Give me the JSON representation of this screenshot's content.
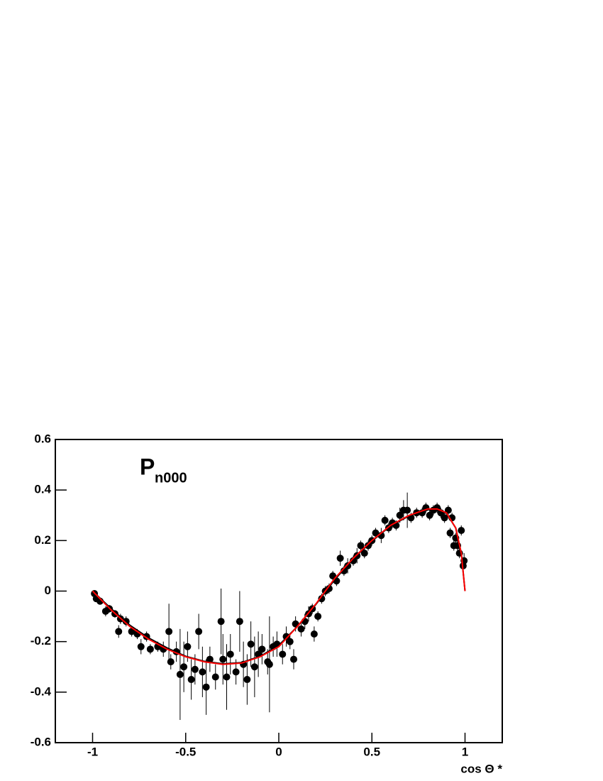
{
  "chart_data": {
    "type": "scatter",
    "annotation": {
      "text": "P",
      "subscript": "n000"
    },
    "x_label": "cos Θ *",
    "xlim": [
      -1.2,
      1.2
    ],
    "ylim": [
      -0.6,
      0.6
    ],
    "xticks": [
      -1,
      -0.5,
      0,
      0.5,
      1
    ],
    "yticks": [
      -0.6,
      -0.4,
      -0.2,
      0,
      0.2,
      0.4,
      0.6
    ],
    "series": [
      {
        "type": "scatter",
        "color": "#000000",
        "x": [
          -0.99,
          -0.98,
          -0.96,
          -0.93,
          -0.91,
          -0.88,
          -0.86,
          -0.85,
          -0.82,
          -0.79,
          -0.76,
          -0.74,
          -0.71,
          -0.69,
          -0.65,
          -0.62,
          -0.59,
          -0.58,
          -0.55,
          -0.53,
          -0.51,
          -0.49,
          -0.47,
          -0.45,
          -0.43,
          -0.41,
          -0.39,
          -0.37,
          -0.34,
          -0.31,
          -0.3,
          -0.28,
          -0.26,
          -0.23,
          -0.21,
          -0.19,
          -0.17,
          -0.15,
          -0.13,
          -0.11,
          -0.09,
          -0.06,
          -0.05,
          -0.03,
          -0.01,
          0.02,
          0.04,
          0.06,
          0.08,
          0.09,
          0.12,
          0.14,
          0.16,
          0.18,
          0.19,
          0.21,
          0.23,
          0.25,
          0.27,
          0.29,
          0.31,
          0.33,
          0.35,
          0.37,
          0.4,
          0.42,
          0.44,
          0.46,
          0.48,
          0.5,
          0.52,
          0.55,
          0.57,
          0.59,
          0.61,
          0.63,
          0.65,
          0.67,
          0.69,
          0.71,
          0.74,
          0.77,
          0.79,
          0.81,
          0.83,
          0.85,
          0.87,
          0.89,
          0.91,
          0.92,
          0.93,
          0.94,
          0.95,
          0.96,
          0.97,
          0.98,
          0.99,
          0.995
        ],
        "values": [
          -0.01,
          -0.03,
          -0.04,
          -0.08,
          -0.07,
          -0.09,
          -0.16,
          -0.11,
          -0.12,
          -0.16,
          -0.17,
          -0.22,
          -0.18,
          -0.23,
          -0.22,
          -0.23,
          -0.16,
          -0.28,
          -0.24,
          -0.33,
          -0.3,
          -0.22,
          -0.35,
          -0.31,
          -0.16,
          -0.32,
          -0.38,
          -0.27,
          -0.34,
          -0.12,
          -0.27,
          -0.34,
          -0.25,
          -0.32,
          -0.12,
          -0.29,
          -0.35,
          -0.21,
          -0.3,
          -0.25,
          -0.23,
          -0.28,
          -0.29,
          -0.22,
          -0.21,
          -0.25,
          -0.18,
          -0.2,
          -0.27,
          -0.13,
          -0.15,
          -0.12,
          -0.09,
          -0.07,
          -0.17,
          -0.1,
          -0.03,
          0.0,
          0.01,
          0.06,
          0.04,
          0.13,
          0.08,
          0.1,
          0.12,
          0.14,
          0.18,
          0.15,
          0.18,
          0.2,
          0.23,
          0.22,
          0.28,
          0.25,
          0.27,
          0.26,
          0.3,
          0.32,
          0.32,
          0.29,
          0.31,
          0.31,
          0.33,
          0.3,
          0.32,
          0.33,
          0.31,
          0.29,
          0.32,
          0.23,
          0.29,
          0.18,
          0.21,
          0.18,
          0.15,
          0.24,
          0.1,
          0.12
        ],
        "errors": [
          0.005,
          0.01,
          0.01,
          0.02,
          0.015,
          0.015,
          0.025,
          0.02,
          0.02,
          0.02,
          0.02,
          0.03,
          0.02,
          0.02,
          0.02,
          0.03,
          0.11,
          0.03,
          0.04,
          0.18,
          0.1,
          0.06,
          0.08,
          0.06,
          0.07,
          0.1,
          0.11,
          0.05,
          0.05,
          0.13,
          0.1,
          0.13,
          0.08,
          0.05,
          0.12,
          0.09,
          0.1,
          0.09,
          0.12,
          0.09,
          0.06,
          0.05,
          0.19,
          0.04,
          0.05,
          0.04,
          0.04,
          0.03,
          0.04,
          0.03,
          0.03,
          0.03,
          0.03,
          0.02,
          0.03,
          0.02,
          0.02,
          0.02,
          0.02,
          0.02,
          0.02,
          0.03,
          0.02,
          0.03,
          0.02,
          0.03,
          0.02,
          0.02,
          0.02,
          0.02,
          0.02,
          0.03,
          0.02,
          0.02,
          0.02,
          0.02,
          0.03,
          0.04,
          0.07,
          0.02,
          0.02,
          0.02,
          0.02,
          0.02,
          0.02,
          0.02,
          0.02,
          0.02,
          0.02,
          0.02,
          0.02,
          0.02,
          0.02,
          0.02,
          0.02,
          0.02,
          0.03,
          0.03
        ]
      },
      {
        "type": "line",
        "color": "#000000",
        "x": [
          -1,
          -0.9,
          -0.8,
          -0.7,
          -0.6,
          -0.5,
          -0.4,
          -0.3,
          -0.2,
          -0.1,
          0,
          0.1,
          0.2,
          0.3,
          0.4,
          0.5,
          0.6,
          0.7,
          0.8,
          0.85,
          0.9,
          0.95,
          0.98,
          1.0
        ],
        "values": [
          0,
          -0.07,
          -0.135,
          -0.185,
          -0.225,
          -0.258,
          -0.278,
          -0.288,
          -0.283,
          -0.258,
          -0.215,
          -0.14,
          -0.052,
          0.045,
          0.128,
          0.198,
          0.258,
          0.298,
          0.322,
          0.322,
          0.308,
          0.25,
          0.15,
          0.0
        ]
      },
      {
        "type": "line",
        "color": "#ff0000",
        "x": [
          -1,
          -0.9,
          -0.8,
          -0.7,
          -0.6,
          -0.5,
          -0.4,
          -0.3,
          -0.2,
          -0.1,
          0,
          0.1,
          0.2,
          0.3,
          0.4,
          0.5,
          0.6,
          0.7,
          0.8,
          0.85,
          0.9,
          0.95,
          0.98,
          1.0
        ],
        "values": [
          0,
          -0.075,
          -0.14,
          -0.19,
          -0.23,
          -0.26,
          -0.28,
          -0.29,
          -0.285,
          -0.26,
          -0.22,
          -0.14,
          -0.05,
          0.05,
          0.13,
          0.2,
          0.26,
          0.3,
          0.325,
          0.325,
          0.31,
          0.25,
          0.15,
          0.0
        ]
      }
    ]
  }
}
